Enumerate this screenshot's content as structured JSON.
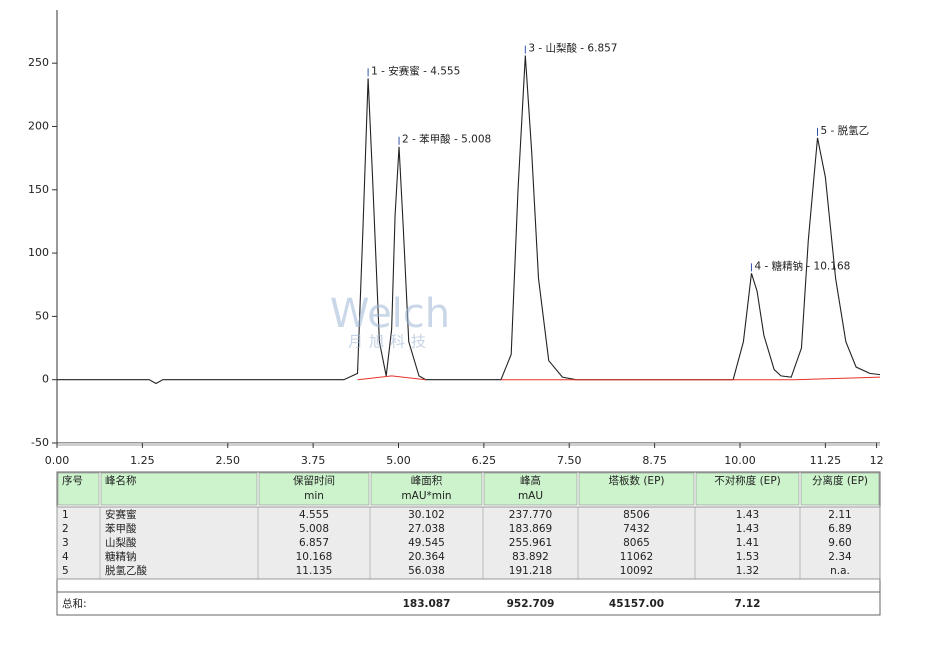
{
  "chart_data": {
    "type": "line",
    "xlim": [
      0,
      12.05
    ],
    "ylim": [
      -50,
      292
    ],
    "xticks": [
      {
        "value": 0,
        "label": "0.00"
      },
      {
        "value": 1.25,
        "label": "1.25"
      },
      {
        "value": 2.5,
        "label": "2.50"
      },
      {
        "value": 3.75,
        "label": "3.75"
      },
      {
        "value": 5,
        "label": "5.00"
      },
      {
        "value": 6.25,
        "label": "6.25"
      },
      {
        "value": 7.5,
        "label": "7.50"
      },
      {
        "value": 8.75,
        "label": "8.75"
      },
      {
        "value": 10,
        "label": "10.00"
      },
      {
        "value": 11.25,
        "label": "11.25"
      },
      12
    ],
    "yticks": [
      -50,
      0,
      50,
      100,
      150,
      200,
      250
    ],
    "series": [
      {
        "color": "#222222",
        "x": [
          0,
          1.35,
          1.45,
          1.55,
          4.2,
          4.4,
          4.48,
          4.555,
          4.62,
          4.72,
          4.82,
          4.9,
          4.95,
          5.008,
          5.07,
          5.15,
          5.3,
          5.4,
          6.5,
          6.65,
          6.75,
          6.857,
          6.95,
          7.05,
          7.2,
          7.4,
          7.6,
          9.9,
          10.05,
          10.168,
          10.25,
          10.35,
          10.5,
          10.6,
          10.75,
          10.9,
          11.0,
          11.135,
          11.25,
          11.4,
          11.55,
          11.7,
          11.9,
          12.05
        ],
        "values": [
          0,
          0,
          -3,
          0,
          0,
          5,
          120,
          238,
          160,
          30,
          3,
          40,
          130,
          184,
          120,
          30,
          3,
          0,
          0,
          20,
          150,
          256,
          180,
          80,
          15,
          2,
          0,
          0,
          30,
          84,
          70,
          35,
          8,
          3,
          2,
          25,
          110,
          191,
          160,
          80,
          30,
          10,
          5,
          4
        ]
      },
      {
        "color": "#e8322c",
        "x": [
          4.4,
          4.9,
          5.4,
          5.5,
          6.5,
          8.1,
          9.8,
          10.8,
          12.05
        ],
        "values": [
          0,
          3,
          0,
          null,
          0,
          0,
          0,
          0,
          2
        ]
      }
    ],
    "annotations": [
      {
        "text": "1 - 安赛蜜 - 4.555",
        "x": 4.555,
        "y": 238
      },
      {
        "text": "2 - 苯甲酸 - 5.008",
        "x": 5.008,
        "y": 184
      },
      {
        "text": "3 - 山梨酸 - 6.857",
        "x": 6.857,
        "y": 256
      },
      {
        "text": "4 - 糖精钠 - 10.168",
        "x": 10.168,
        "y": 84
      },
      {
        "text": "5 - 脱氢乙",
        "x": 11.135,
        "y": 191
      }
    ]
  },
  "watermark": {
    "logo": "Welch",
    "text": "月旭科技"
  },
  "table": {
    "header": [
      [
        "序号"
      ],
      [
        "峰名称"
      ],
      [
        "保留时间",
        "min"
      ],
      [
        "峰面积",
        "mAU*min"
      ],
      [
        "峰高",
        "mAU"
      ],
      [
        "塔板数 (EP)"
      ],
      [
        "不对称度 (EP)"
      ],
      [
        "分离度 (EP)"
      ]
    ],
    "rows": [
      [
        "1",
        "安赛蜜",
        "4.555",
        "30.102",
        "237.770",
        "8506",
        "1.43",
        "2.11"
      ],
      [
        "2",
        "苯甲酸",
        "5.008",
        "27.038",
        "183.869",
        "7432",
        "1.43",
        "6.89"
      ],
      [
        "3",
        "山梨酸",
        "6.857",
        "49.545",
        "255.961",
        "8065",
        "1.41",
        "9.60"
      ],
      [
        "4",
        "糖精钠",
        "10.168",
        "20.364",
        "83.892",
        "11062",
        "1.53",
        "2.34"
      ],
      [
        "5",
        "脱氢乙酸",
        "11.135",
        "56.038",
        "191.218",
        "10092",
        "1.32",
        "n.a."
      ]
    ],
    "total": {
      "label": "总和:",
      "area": "183.087",
      "height": "952.709",
      "plates": "45157.00",
      "asymmetry": "7.12"
    }
  }
}
